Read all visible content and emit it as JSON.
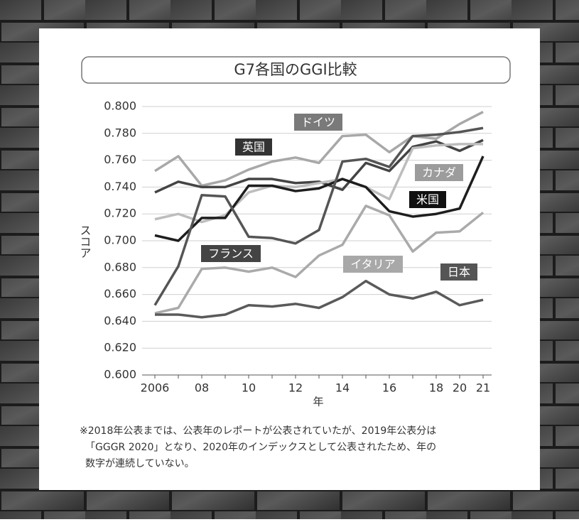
{
  "chart_data": {
    "type": "line",
    "title": "G7各国のGGI比較",
    "y_label": "スコア",
    "x_label": "年",
    "categories": [
      "2006",
      null,
      "08",
      null,
      "10",
      null,
      "12",
      null,
      "14",
      null,
      "16",
      null,
      "18",
      "20",
      "21"
    ],
    "ylim": [
      0.6,
      0.8
    ],
    "yticks": [
      {
        "value": 0.6,
        "label": "0.600"
      },
      {
        "value": 0.62,
        "label": "0.620"
      },
      {
        "value": 0.64,
        "label": "0.640"
      },
      {
        "value": 0.66,
        "label": "0.660"
      },
      {
        "value": 0.68,
        "label": "0.680"
      },
      {
        "value": 0.7,
        "label": "0.700"
      },
      {
        "value": 0.72,
        "label": "0.720"
      },
      {
        "value": 0.74,
        "label": "0.740"
      },
      {
        "value": 0.76,
        "label": "0.760"
      },
      {
        "value": 0.78,
        "label": "0.780"
      },
      {
        "value": 0.8,
        "label": "0.800"
      }
    ],
    "grid": true,
    "series": [
      {
        "name": "ドイツ",
        "color": "#a8a8a8",
        "values": [
          0.752,
          0.763,
          0.741,
          0.745,
          0.753,
          0.759,
          0.762,
          0.758,
          0.778,
          0.779,
          0.766,
          0.778,
          0.776,
          0.787,
          0.796
        ]
      },
      {
        "name": "英国",
        "color": "#444444",
        "values": [
          0.736,
          0.744,
          0.74,
          0.74,
          0.746,
          0.746,
          0.743,
          0.744,
          0.738,
          0.758,
          0.752,
          0.77,
          0.774,
          0.767,
          0.775
        ]
      },
      {
        "name": "カナダ",
        "color": "#bdbdbd",
        "values": [
          0.716,
          0.72,
          0.714,
          0.719,
          0.736,
          0.741,
          0.74,
          0.743,
          0.746,
          0.74,
          0.731,
          0.769,
          0.771,
          0.772,
          0.772
        ]
      },
      {
        "name": "米国",
        "color": "#1e1e1e",
        "values": [
          0.704,
          0.7,
          0.717,
          0.717,
          0.741,
          0.741,
          0.737,
          0.739,
          0.746,
          0.74,
          0.722,
          0.718,
          0.72,
          0.724,
          0.763
        ]
      },
      {
        "name": "フランス",
        "color": "#555555",
        "values": [
          0.652,
          0.681,
          0.734,
          0.733,
          0.703,
          0.702,
          0.698,
          0.708,
          0.759,
          0.761,
          0.755,
          0.778,
          0.779,
          0.781,
          0.784
        ]
      },
      {
        "name": "イタリア",
        "color": "#aaaaaa",
        "values": [
          0.646,
          0.65,
          0.679,
          0.68,
          0.677,
          0.68,
          0.673,
          0.689,
          0.697,
          0.726,
          0.719,
          0.692,
          0.706,
          0.707,
          0.721
        ]
      },
      {
        "name": "日本",
        "color": "#5a5a5a",
        "values": [
          0.645,
          0.645,
          0.643,
          0.645,
          0.652,
          0.651,
          0.653,
          0.65,
          0.658,
          0.67,
          0.66,
          0.657,
          0.662,
          0.652,
          0.656
        ]
      }
    ],
    "notes": [
      "※2018年公表までは、公表年のレポートが公表されていたが、2019年公表分は",
      "「GGGR 2020」となり、2020年のインデックスとして公表されたため、年の",
      "数字が連続していない。"
    ]
  }
}
